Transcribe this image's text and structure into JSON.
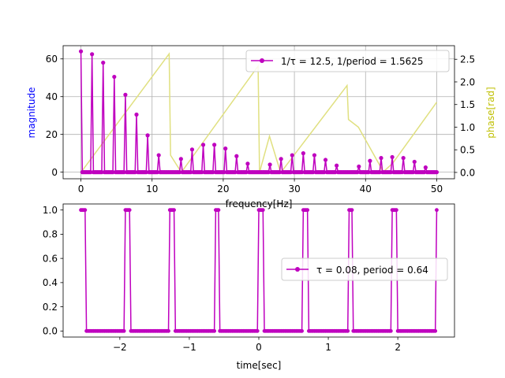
{
  "chart_data": [
    {
      "type": "line",
      "subplot": "top",
      "xlabel": "frequency[Hz]",
      "ylabel": "magnitude",
      "y2label": "phase[rad]",
      "xlim": [
        -2.5,
        52.5
      ],
      "ylim": [
        -3.5,
        67
      ],
      "y2lim": [
        -0.14,
        2.8
      ],
      "xticks": [
        0,
        10,
        20,
        30,
        40,
        50
      ],
      "yticks": [
        0,
        20,
        40,
        60
      ],
      "y2ticks": [
        0.0,
        0.5,
        1.0,
        1.5,
        2.0,
        2.5
      ],
      "grid": true,
      "legend": {
        "position": "top-right",
        "label": "1/τ = 12.5, 1/period = 1.5625"
      },
      "series": [
        {
          "name": "1/τ = 12.5, 1/period = 1.5625",
          "axis": "left",
          "color": "#bf00bf",
          "style": "stem-line-with-dots",
          "x": [
            0,
            1.5625,
            3.125,
            4.6875,
            6.25,
            7.8125,
            9.375,
            10.9375,
            12.5,
            14.0625,
            15.625,
            17.1875,
            18.75,
            20.3125,
            21.875,
            23.4375,
            25,
            26.5625,
            28.125,
            29.6875,
            31.25,
            32.8125,
            34.375,
            35.9375,
            37.5,
            39.0625,
            40.625,
            42.1875,
            43.75,
            45.3125,
            46.875,
            48.4375,
            50
          ],
          "values": [
            64,
            62.5,
            58,
            50.5,
            41,
            30.5,
            19.5,
            9,
            0,
            7,
            12,
            14.5,
            14.5,
            12.5,
            8.5,
            4.5,
            0,
            4,
            7,
            9,
            10,
            9,
            6.5,
            3.5,
            0,
            3,
            6,
            7.5,
            8,
            7.5,
            5.5,
            2.5,
            0
          ]
        },
        {
          "axis": "right",
          "color": "#e0e080",
          "style": "line",
          "x": [
            0,
            12.4,
            12.6,
            13.8,
            14.1,
            24.9,
            25.1,
            26.5,
            27.9,
            28.1,
            37.4,
            37.6,
            39.0,
            42.2,
            42.4,
            43.8,
            50
          ],
          "values": [
            0,
            2.62,
            0.38,
            0.08,
            0,
            2.35,
            0,
            0.8,
            0.08,
            0,
            1.92,
            1.17,
            1.0,
            0.1,
            0,
            0.2,
            1.55
          ]
        }
      ]
    },
    {
      "type": "line",
      "subplot": "bottom",
      "xlabel": "time[sec]",
      "ylabel": "",
      "xlim": [
        -2.816,
        2.816
      ],
      "ylim": [
        -0.05,
        1.05
      ],
      "xticks": [
        -2,
        -1,
        0,
        1,
        2
      ],
      "yticks": [
        0.0,
        0.2,
        0.4,
        0.6,
        0.8,
        1.0
      ],
      "grid": false,
      "legend": {
        "position": "center-right",
        "label": "τ = 0.08, period = 0.64"
      },
      "series": [
        {
          "name": "τ = 0.08, period = 0.64",
          "color": "#bf00bf",
          "style": "line-with-dots",
          "pulse_train": {
            "start": -2.56,
            "end": 2.56,
            "step": 0.02,
            "period": 0.64,
            "pulse_width": 0.08,
            "high": 1,
            "low": 0
          }
        }
      ]
    }
  ]
}
